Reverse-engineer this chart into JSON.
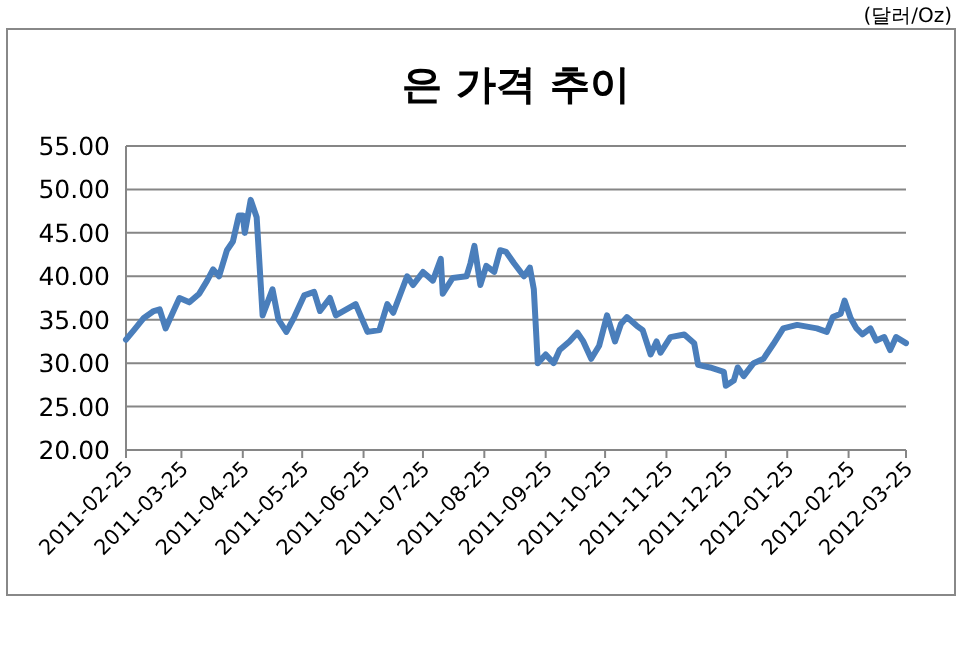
{
  "chart_data": {
    "type": "line",
    "title": "은 가격 추이",
    "annotations": [
      "(달러/Oz)"
    ],
    "x": [
      "2011-02-25",
      "2011-03-01",
      "2011-03-06",
      "2011-03-11",
      "2011-03-14",
      "2011-03-17",
      "2011-03-21",
      "2011-03-24",
      "2011-03-29",
      "2011-04-03",
      "2011-04-07",
      "2011-04-10",
      "2011-04-13",
      "2011-04-17",
      "2011-04-20",
      "2011-04-23",
      "2011-04-25",
      "2011-04-26",
      "2011-04-29",
      "2011-05-02",
      "2011-05-05",
      "2011-05-10",
      "2011-05-13",
      "2011-05-17",
      "2011-05-21",
      "2011-05-26",
      "2011-05-31",
      "2011-06-03",
      "2011-06-08",
      "2011-06-11",
      "2011-06-21",
      "2011-06-27",
      "2011-07-03",
      "2011-07-07",
      "2011-07-10",
      "2011-07-17",
      "2011-07-20",
      "2011-07-25",
      "2011-07-30",
      "2011-08-03",
      "2011-08-04",
      "2011-08-09",
      "2011-08-16",
      "2011-08-18",
      "2011-08-20",
      "2011-08-23",
      "2011-08-26",
      "2011-08-30",
      "2011-09-02",
      "2011-09-05",
      "2011-09-09",
      "2011-09-14",
      "2011-09-17",
      "2011-09-19",
      "2011-09-21",
      "2011-09-25",
      "2011-09-29",
      "2011-10-02",
      "2011-10-07",
      "2011-10-11",
      "2011-10-14",
      "2011-10-18",
      "2011-10-22",
      "2011-10-26",
      "2011-10-30",
      "2011-11-02",
      "2011-11-05",
      "2011-11-10",
      "2011-11-13",
      "2011-11-17",
      "2011-11-20",
      "2011-11-22",
      "2011-11-27",
      "2011-12-04",
      "2011-12-09",
      "2011-12-11",
      "2011-12-17",
      "2011-12-24",
      "2011-12-25",
      "2011-12-29",
      "2011-12-31",
      "2012-01-03",
      "2012-01-08",
      "2012-01-13",
      "2012-01-18",
      "2012-01-23",
      "2012-01-30",
      "2012-02-04",
      "2012-02-09",
      "2012-02-14",
      "2012-02-17",
      "2012-02-21",
      "2012-02-23",
      "2012-02-26",
      "2012-02-29",
      "2012-03-03",
      "2012-03-07",
      "2012-03-10",
      "2012-03-14",
      "2012-03-17",
      "2012-03-20",
      "2012-03-25"
    ],
    "series": [
      {
        "color": "#4a7ebb",
        "values": [
          32.7,
          33.8,
          35.2,
          36,
          36.2,
          34,
          36,
          37.5,
          37,
          38,
          39.5,
          40.8,
          40,
          43,
          44,
          47,
          47,
          45,
          48.8,
          46.8,
          35.5,
          38.5,
          35,
          33.6,
          35.3,
          37.8,
          38.2,
          36,
          37.5,
          35.5,
          36.8,
          33.6,
          33.8,
          36.8,
          35.8,
          40,
          39,
          40.5,
          39.5,
          42,
          38,
          39.8,
          40,
          41.5,
          43.5,
          39,
          41.2,
          40.5,
          43,
          42.8,
          41.5,
          40,
          41,
          38.5,
          30,
          31,
          30,
          31.5,
          32.5,
          33.5,
          32.5,
          30.5,
          32,
          35.5,
          32.5,
          34.5,
          35.3,
          34.3,
          33.8,
          31,
          32.5,
          31.2,
          33,
          33.3,
          32.3,
          29.8,
          29.5,
          29,
          27.4,
          28,
          29.5,
          28.5,
          30,
          30.5,
          32.2,
          34,
          34.4,
          34.2,
          34,
          33.6,
          35.3,
          35.7,
          37.2,
          35.2,
          34,
          33.3,
          34,
          32.6,
          33,
          31.5,
          33,
          32.3
        ]
      }
    ],
    "xlim": [
      "2011-02-25",
      "2012-03-25"
    ],
    "xticks": [
      "2011-02-25",
      "2011-03-25",
      "2011-04-25",
      "2011-05-25",
      "2011-06-25",
      "2011-07-25",
      "2011-08-25",
      "2011-09-25",
      "2011-10-25",
      "2011-11-25",
      "2011-12-25",
      "2012-01-25",
      "2012-02-25",
      "2012-03-25"
    ],
    "ylim": [
      20,
      55
    ],
    "yticks": [
      {
        "value": 20,
        "label": "20.00"
      },
      {
        "value": 25,
        "label": "25.00"
      },
      {
        "value": 30,
        "label": "30.00"
      },
      {
        "value": 35,
        "label": "35.00"
      },
      {
        "value": 40,
        "label": "40.00"
      },
      {
        "value": 45,
        "label": "45.00"
      },
      {
        "value": 50,
        "label": "50.00"
      },
      {
        "value": 55,
        "label": "55.00"
      }
    ],
    "grid": "y",
    "marker": "none",
    "line_style": "solid"
  }
}
